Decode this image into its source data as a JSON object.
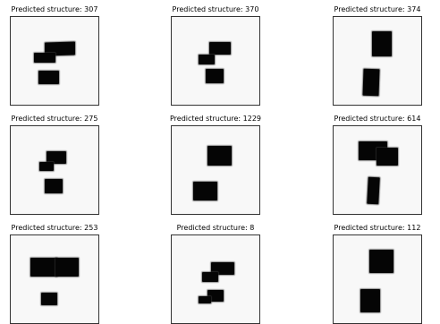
{
  "panels": [
    {
      "title": "Predicted structure: 307"
    },
    {
      "title": "Predicted structure: 370"
    },
    {
      "title": "Predicted structure: 374"
    },
    {
      "title": "Predicted structure: 275"
    },
    {
      "title": "Predicted structure: 1229"
    },
    {
      "title": "Predicted structure: 614"
    },
    {
      "title": "Predicted structure: 253"
    },
    {
      "title": "Predicted structure: 8"
    },
    {
      "title": "Predicted structure: 112"
    }
  ]
}
